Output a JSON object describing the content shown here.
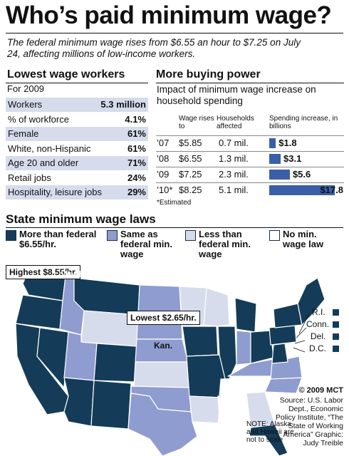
{
  "title": "Who’s paid minimum wage?",
  "subtitle": "The federal minimum wage rises from $6.55 an hour to $7.25 on July 24, affecting millions of low-income workers.",
  "colors": {
    "dark": "#143c58",
    "medium": "#8f9ccf",
    "light": "#d6dcec",
    "none": "#ffffff",
    "bar": "#3a5fa8"
  },
  "lowest_wage": {
    "heading": "Lowest wage workers",
    "subheading": "For 2009",
    "rows": [
      {
        "label": "Workers",
        "value": "5.3 million"
      },
      {
        "label": "% of workforce",
        "value": "4.1%"
      },
      {
        "label": "Female",
        "value": "61%"
      },
      {
        "label": "White, non-Hispanic",
        "value": "61%"
      },
      {
        "label": "Age 20 and older",
        "value": "71%"
      },
      {
        "label": "Retail jobs",
        "value": "24%"
      },
      {
        "label": "Hospitality, leisure jobs",
        "value": "29%"
      }
    ]
  },
  "buying_power": {
    "heading": "More buying power",
    "subheading": "Impact of minimum wage increase on household spending",
    "col_wage": "Wage rises to",
    "col_households": "Households affected",
    "col_spending": "Spending increase, in billions",
    "note": "*Estimated"
  },
  "chart_data": {
    "type": "bar",
    "title": "More buying power",
    "categories": [
      "’07",
      "’08",
      "’09",
      "’10*"
    ],
    "wage": [
      "$5.85",
      "$6.55",
      "$7.25",
      "$8.25"
    ],
    "households": [
      "0.7 mil.",
      "1.3 mil.",
      "2.3 mil.",
      "5.1 mil."
    ],
    "values": [
      1.8,
      3.1,
      5.6,
      17.8
    ],
    "value_labels": [
      "$1.8",
      "$3.1",
      "$5.6",
      "$17.8"
    ],
    "ylim": [
      0,
      17.8
    ]
  },
  "map": {
    "heading": "State minimum wage laws",
    "legend": [
      {
        "label": "More than federal $6.55/hr.",
        "color": "#143c58"
      },
      {
        "label": "Same as federal min. wage",
        "color": "#8f9ccf"
      },
      {
        "label": "Less than federal min. wage",
        "color": "#d6dcec"
      },
      {
        "label": "No min. wage law",
        "color": "#ffffff"
      }
    ],
    "highest": "Highest $8.55/hr.",
    "lowest": "Lowest $2.65/hr.",
    "wash": "Wash.",
    "kan": "Kan.",
    "small_states": [
      "R.I.",
      "Conn.",
      "Del.",
      "D.C."
    ]
  },
  "copyright": "© 2009 MCT",
  "source": "Source: U.S. Labor Dept., Economic Policy Institute, “The State of Working America” Graphic: Judy Treible",
  "note": "NOTE: Alaska and Hawaii are not to scale"
}
